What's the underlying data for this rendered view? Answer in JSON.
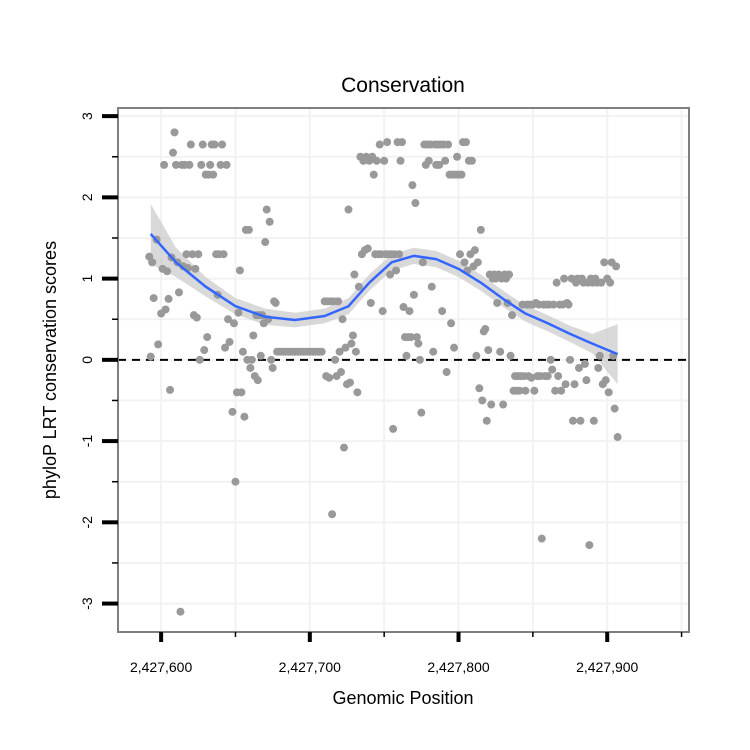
{
  "chart_data": {
    "type": "scatter",
    "title": "Conservation",
    "xlabel": "Genomic Position",
    "ylabel": "phyloP LRT conservation scores",
    "xlim": [
      2427571,
      2427955
    ],
    "ylim": [
      -3.35,
      3.1
    ],
    "x_ticks": [
      {
        "value": 2427600,
        "label": "2,427,600"
      },
      {
        "value": 2427700,
        "label": "2,427,700"
      },
      {
        "value": 2427800,
        "label": "2,427,800"
      },
      {
        "value": 2427900,
        "label": "2,427,900"
      }
    ],
    "y_ticks": [
      {
        "value": 3,
        "label": "3"
      },
      {
        "value": 2,
        "label": "2"
      },
      {
        "value": 1,
        "label": "1"
      },
      {
        "value": 0,
        "label": "0"
      },
      {
        "value": -1,
        "label": "-1"
      },
      {
        "value": -2,
        "label": "-2"
      },
      {
        "value": -3,
        "label": "-3"
      }
    ],
    "reference_line": {
      "y": 0,
      "style": "dashed"
    },
    "colors": {
      "points": "#999999",
      "smooth": "#3366ff",
      "band": "#cccccc",
      "frame": "#7f7f7f",
      "grid": "#f2f2f2"
    },
    "points": [
      [
        2427592,
        1.27
      ],
      [
        2427593,
        0.04
      ],
      [
        2427594,
        1.2
      ],
      [
        2427595,
        0.76
      ],
      [
        2427597,
        1.48
      ],
      [
        2427598,
        0.19
      ],
      [
        2427600,
        0.57
      ],
      [
        2427601,
        1.12
      ],
      [
        2427602,
        2.4
      ],
      [
        2427603,
        0.62
      ],
      [
        2427604,
        1.09
      ],
      [
        2427605,
        0.75
      ],
      [
        2427606,
        -0.37
      ],
      [
        2427607,
        1.26
      ],
      [
        2427608,
        2.55
      ],
      [
        2427609,
        2.8
      ],
      [
        2427610,
        2.4
      ],
      [
        2427611,
        1.2
      ],
      [
        2427612,
        0.83
      ],
      [
        2427613,
        -3.1
      ],
      [
        2427614,
        2.4
      ],
      [
        2427615,
        1.15
      ],
      [
        2427616,
        2.4
      ],
      [
        2427617,
        1.3
      ],
      [
        2427618,
        1.13
      ],
      [
        2427619,
        2.4
      ],
      [
        2427620,
        2.65
      ],
      [
        2427621,
        1.3
      ],
      [
        2427622,
        0.55
      ],
      [
        2427623,
        1.12
      ],
      [
        2427624,
        0.52
      ],
      [
        2427625,
        1.3
      ],
      [
        2427626,
        0.0
      ],
      [
        2427627,
        2.4
      ],
      [
        2427628,
        2.65
      ],
      [
        2427629,
        0.12
      ],
      [
        2427630,
        2.28
      ],
      [
        2427631,
        0.28
      ],
      [
        2427632,
        2.28
      ],
      [
        2427633,
        2.4
      ],
      [
        2427634,
        2.65
      ],
      [
        2427635,
        2.28
      ],
      [
        2427636,
        2.65
      ],
      [
        2427637,
        1.3
      ],
      [
        2427638,
        0.8
      ],
      [
        2427639,
        1.3
      ],
      [
        2427640,
        2.4
      ],
      [
        2427641,
        2.65
      ],
      [
        2427642,
        1.3
      ],
      [
        2427643,
        0.15
      ],
      [
        2427644,
        2.4
      ],
      [
        2427645,
        0.5
      ],
      [
        2427646,
        0.22
      ],
      [
        2427648,
        -0.64
      ],
      [
        2427649,
        0.45
      ],
      [
        2427650,
        -1.5
      ],
      [
        2427651,
        -0.4
      ],
      [
        2427652,
        0.58
      ],
      [
        2427653,
        1.1
      ],
      [
        2427654,
        -0.4
      ],
      [
        2427655,
        0.1
      ],
      [
        2427656,
        -0.7
      ],
      [
        2427657,
        1.6
      ],
      [
        2427658,
        0.0
      ],
      [
        2427659,
        1.6
      ],
      [
        2427660,
        -0.1
      ],
      [
        2427661,
        0.0
      ],
      [
        2427662,
        0.3
      ],
      [
        2427663,
        -0.2
      ],
      [
        2427664,
        0.55
      ],
      [
        2427665,
        -0.25
      ],
      [
        2427666,
        0.55
      ],
      [
        2427667,
        0.05
      ],
      [
        2427668,
        0.55
      ],
      [
        2427669,
        0.45
      ],
      [
        2427670,
        1.45
      ],
      [
        2427671,
        1.85
      ],
      [
        2427672,
        0.5
      ],
      [
        2427673,
        1.7
      ],
      [
        2427674,
        0.0
      ],
      [
        2427675,
        -0.1
      ],
      [
        2427676,
        0.72
      ],
      [
        2427677,
        0.7
      ],
      [
        2427678,
        0.1
      ],
      [
        2427680,
        0.1
      ],
      [
        2427682,
        0.1
      ],
      [
        2427684,
        0.1
      ],
      [
        2427686,
        0.1
      ],
      [
        2427688,
        0.1
      ],
      [
        2427690,
        0.1
      ],
      [
        2427692,
        0.1
      ],
      [
        2427694,
        0.1
      ],
      [
        2427696,
        0.1
      ],
      [
        2427698,
        0.1
      ],
      [
        2427700,
        0.1
      ],
      [
        2427702,
        0.1
      ],
      [
        2427704,
        0.1
      ],
      [
        2427706,
        0.1
      ],
      [
        2427708,
        0.1
      ],
      [
        2427710,
        0.72
      ],
      [
        2427711,
        -0.2
      ],
      [
        2427712,
        0.72
      ],
      [
        2427713,
        -0.22
      ],
      [
        2427714,
        0.72
      ],
      [
        2427715,
        -1.9
      ],
      [
        2427716,
        0.72
      ],
      [
        2427717,
        0.0
      ],
      [
        2427718,
        -0.2
      ],
      [
        2427719,
        0.72
      ],
      [
        2427720,
        0.1
      ],
      [
        2427721,
        -0.15
      ],
      [
        2427722,
        0.5
      ],
      [
        2427723,
        -1.08
      ],
      [
        2427724,
        0.15
      ],
      [
        2427725,
        -0.3
      ],
      [
        2427726,
        1.85
      ],
      [
        2427727,
        -0.28
      ],
      [
        2427728,
        0.2
      ],
      [
        2427729,
        0.3
      ],
      [
        2427730,
        1.05
      ],
      [
        2427731,
        0.1
      ],
      [
        2427732,
        -0.4
      ],
      [
        2427733,
        0.9
      ],
      [
        2427734,
        2.5
      ],
      [
        2427735,
        1.3
      ],
      [
        2427736,
        2.45
      ],
      [
        2427737,
        1.35
      ],
      [
        2427738,
        2.5
      ],
      [
        2427739,
        1.37
      ],
      [
        2427740,
        2.45
      ],
      [
        2427741,
        0.7
      ],
      [
        2427742,
        2.5
      ],
      [
        2427743,
        2.28
      ],
      [
        2427744,
        1.3
      ],
      [
        2427745,
        2.45
      ],
      [
        2427746,
        1.3
      ],
      [
        2427747,
        2.65
      ],
      [
        2427748,
        1.3
      ],
      [
        2427749,
        0.6
      ],
      [
        2427750,
        2.45
      ],
      [
        2427751,
        1.3
      ],
      [
        2427752,
        2.68
      ],
      [
        2427753,
        1.3
      ],
      [
        2427754,
        1.05
      ],
      [
        2427755,
        1.3
      ],
      [
        2427756,
        -0.85
      ],
      [
        2427757,
        1.3
      ],
      [
        2427758,
        1.1
      ],
      [
        2427759,
        2.68
      ],
      [
        2427760,
        1.3
      ],
      [
        2427761,
        2.45
      ],
      [
        2427762,
        2.68
      ],
      [
        2427763,
        0.65
      ],
      [
        2427764,
        0.28
      ],
      [
        2427765,
        0.05
      ],
      [
        2427766,
        0.28
      ],
      [
        2427767,
        0.6
      ],
      [
        2427768,
        0.28
      ],
      [
        2427769,
        2.15
      ],
      [
        2427770,
        0.8
      ],
      [
        2427771,
        1.93
      ],
      [
        2427772,
        0.28
      ],
      [
        2427773,
        0.2
      ],
      [
        2427774,
        0.0
      ],
      [
        2427775,
        -0.65
      ],
      [
        2427776,
        1.2
      ],
      [
        2427777,
        2.65
      ],
      [
        2427778,
        2.4
      ],
      [
        2427779,
        2.65
      ],
      [
        2427780,
        2.45
      ],
      [
        2427781,
        2.65
      ],
      [
        2427782,
        0.9
      ],
      [
        2427783,
        0.1
      ],
      [
        2427784,
        2.65
      ],
      [
        2427785,
        2.4
      ],
      [
        2427786,
        2.65
      ],
      [
        2427787,
        2.4
      ],
      [
        2427788,
        2.65
      ],
      [
        2427789,
        0.6
      ],
      [
        2427790,
        2.65
      ],
      [
        2427791,
        2.45
      ],
      [
        2427792,
        -0.15
      ],
      [
        2427793,
        2.65
      ],
      [
        2427794,
        2.28
      ],
      [
        2427795,
        0.45
      ],
      [
        2427796,
        2.28
      ],
      [
        2427797,
        0.15
      ],
      [
        2427798,
        2.28
      ],
      [
        2427799,
        2.5
      ],
      [
        2427800,
        2.28
      ],
      [
        2427801,
        1.3
      ],
      [
        2427802,
        2.28
      ],
      [
        2427803,
        2.68
      ],
      [
        2427804,
        1.2
      ],
      [
        2427805,
        2.68
      ],
      [
        2427806,
        1.1
      ],
      [
        2427807,
        2.45
      ],
      [
        2427808,
        1.3
      ],
      [
        2427809,
        2.45
      ],
      [
        2427810,
        1.15
      ],
      [
        2427811,
        1.35
      ],
      [
        2427812,
        0.05
      ],
      [
        2427813,
        1.2
      ],
      [
        2427814,
        -0.35
      ],
      [
        2427815,
        1.6
      ],
      [
        2427816,
        -0.5
      ],
      [
        2427817,
        0.35
      ],
      [
        2427818,
        0.38
      ],
      [
        2427819,
        -0.75
      ],
      [
        2427820,
        0.12
      ],
      [
        2427821,
        1.05
      ],
      [
        2427822,
        -0.55
      ],
      [
        2427823,
        1.0
      ],
      [
        2427824,
        1.05
      ],
      [
        2427825,
        1.0
      ],
      [
        2427826,
        0.7
      ],
      [
        2427827,
        1.05
      ],
      [
        2427828,
        0.1
      ],
      [
        2427829,
        1.0
      ],
      [
        2427830,
        -0.55
      ],
      [
        2427831,
        1.05
      ],
      [
        2427832,
        1.0
      ],
      [
        2427833,
        0.7
      ],
      [
        2427834,
        1.05
      ],
      [
        2427835,
        0.05
      ],
      [
        2427836,
        0.55
      ],
      [
        2427837,
        -0.38
      ],
      [
        2427838,
        -0.2
      ],
      [
        2427839,
        -0.38
      ],
      [
        2427840,
        -0.2
      ],
      [
        2427841,
        -0.38
      ],
      [
        2427842,
        -0.2
      ],
      [
        2427843,
        0.68
      ],
      [
        2427844,
        -0.2
      ],
      [
        2427845,
        -0.38
      ],
      [
        2427846,
        0.68
      ],
      [
        2427847,
        -0.2
      ],
      [
        2427848,
        0.68
      ],
      [
        2427849,
        -0.22
      ],
      [
        2427850,
        0.68
      ],
      [
        2427851,
        -0.38
      ],
      [
        2427852,
        0.7
      ],
      [
        2427853,
        -0.2
      ],
      [
        2427854,
        0.68
      ],
      [
        2427855,
        -0.2
      ],
      [
        2427856,
        -2.2
      ],
      [
        2427857,
        0.68
      ],
      [
        2427858,
        -0.2
      ],
      [
        2427859,
        0.68
      ],
      [
        2427860,
        -0.2
      ],
      [
        2427861,
        0.68
      ],
      [
        2427862,
        0.0
      ],
      [
        2427863,
        -0.12
      ],
      [
        2427864,
        0.68
      ],
      [
        2427865,
        -0.38
      ],
      [
        2427866,
        0.95
      ],
      [
        2427867,
        -0.2
      ],
      [
        2427868,
        0.68
      ],
      [
        2427869,
        -0.38
      ],
      [
        2427870,
        0.68
      ],
      [
        2427871,
        1.0
      ],
      [
        2427872,
        -0.3
      ],
      [
        2427873,
        0.7
      ],
      [
        2427874,
        0.68
      ],
      [
        2427875,
        0.0
      ],
      [
        2427876,
        1.0
      ],
      [
        2427877,
        -0.75
      ],
      [
        2427878,
        -0.3
      ],
      [
        2427879,
        0.95
      ],
      [
        2427880,
        1.0
      ],
      [
        2427881,
        -0.1
      ],
      [
        2427882,
        -0.75
      ],
      [
        2427883,
        1.0
      ],
      [
        2427884,
        0.95
      ],
      [
        2427885,
        -0.05
      ],
      [
        2427886,
        -0.25
      ],
      [
        2427887,
        0.95
      ],
      [
        2427888,
        -2.28
      ],
      [
        2427889,
        1.0
      ],
      [
        2427890,
        0.95
      ],
      [
        2427891,
        -0.75
      ],
      [
        2427892,
        1.0
      ],
      [
        2427893,
        0.95
      ],
      [
        2427894,
        -0.1
      ],
      [
        2427895,
        0.05
      ],
      [
        2427896,
        0.95
      ],
      [
        2427897,
        -0.3
      ],
      [
        2427898,
        1.2
      ],
      [
        2427899,
        -0.25
      ],
      [
        2427900,
        1.0
      ],
      [
        2427901,
        -0.4
      ],
      [
        2427902,
        0.95
      ],
      [
        2427903,
        1.2
      ],
      [
        2427904,
        0.05
      ],
      [
        2427905,
        -0.6
      ],
      [
        2427906,
        1.15
      ],
      [
        2427907,
        -0.95
      ]
    ],
    "smooth": [
      {
        "x": 2427593,
        "y": 1.55,
        "lo": 1.18,
        "hi": 1.92
      },
      {
        "x": 2427610,
        "y": 1.2,
        "lo": 1.02,
        "hi": 1.38
      },
      {
        "x": 2427630,
        "y": 0.9,
        "lo": 0.78,
        "hi": 1.02
      },
      {
        "x": 2427650,
        "y": 0.66,
        "lo": 0.56,
        "hi": 0.76
      },
      {
        "x": 2427670,
        "y": 0.53,
        "lo": 0.43,
        "hi": 0.63
      },
      {
        "x": 2427690,
        "y": 0.49,
        "lo": 0.4,
        "hi": 0.58
      },
      {
        "x": 2427710,
        "y": 0.54,
        "lo": 0.45,
        "hi": 0.63
      },
      {
        "x": 2427726,
        "y": 0.66,
        "lo": 0.56,
        "hi": 0.76
      },
      {
        "x": 2427740,
        "y": 0.95,
        "lo": 0.85,
        "hi": 1.05
      },
      {
        "x": 2427755,
        "y": 1.2,
        "lo": 1.1,
        "hi": 1.3
      },
      {
        "x": 2427770,
        "y": 1.28,
        "lo": 1.18,
        "hi": 1.38
      },
      {
        "x": 2427785,
        "y": 1.24,
        "lo": 1.14,
        "hi": 1.34
      },
      {
        "x": 2427800,
        "y": 1.12,
        "lo": 1.02,
        "hi": 1.22
      },
      {
        "x": 2427815,
        "y": 0.95,
        "lo": 0.85,
        "hi": 1.05
      },
      {
        "x": 2427830,
        "y": 0.75,
        "lo": 0.65,
        "hi": 0.85
      },
      {
        "x": 2427845,
        "y": 0.57,
        "lo": 0.47,
        "hi": 0.67
      },
      {
        "x": 2427860,
        "y": 0.45,
        "lo": 0.35,
        "hi": 0.55
      },
      {
        "x": 2427875,
        "y": 0.32,
        "lo": 0.22,
        "hi": 0.42
      },
      {
        "x": 2427890,
        "y": 0.2,
        "lo": 0.08,
        "hi": 0.32
      },
      {
        "x": 2427907,
        "y": 0.07,
        "lo": -0.3,
        "hi": 0.44
      }
    ]
  }
}
